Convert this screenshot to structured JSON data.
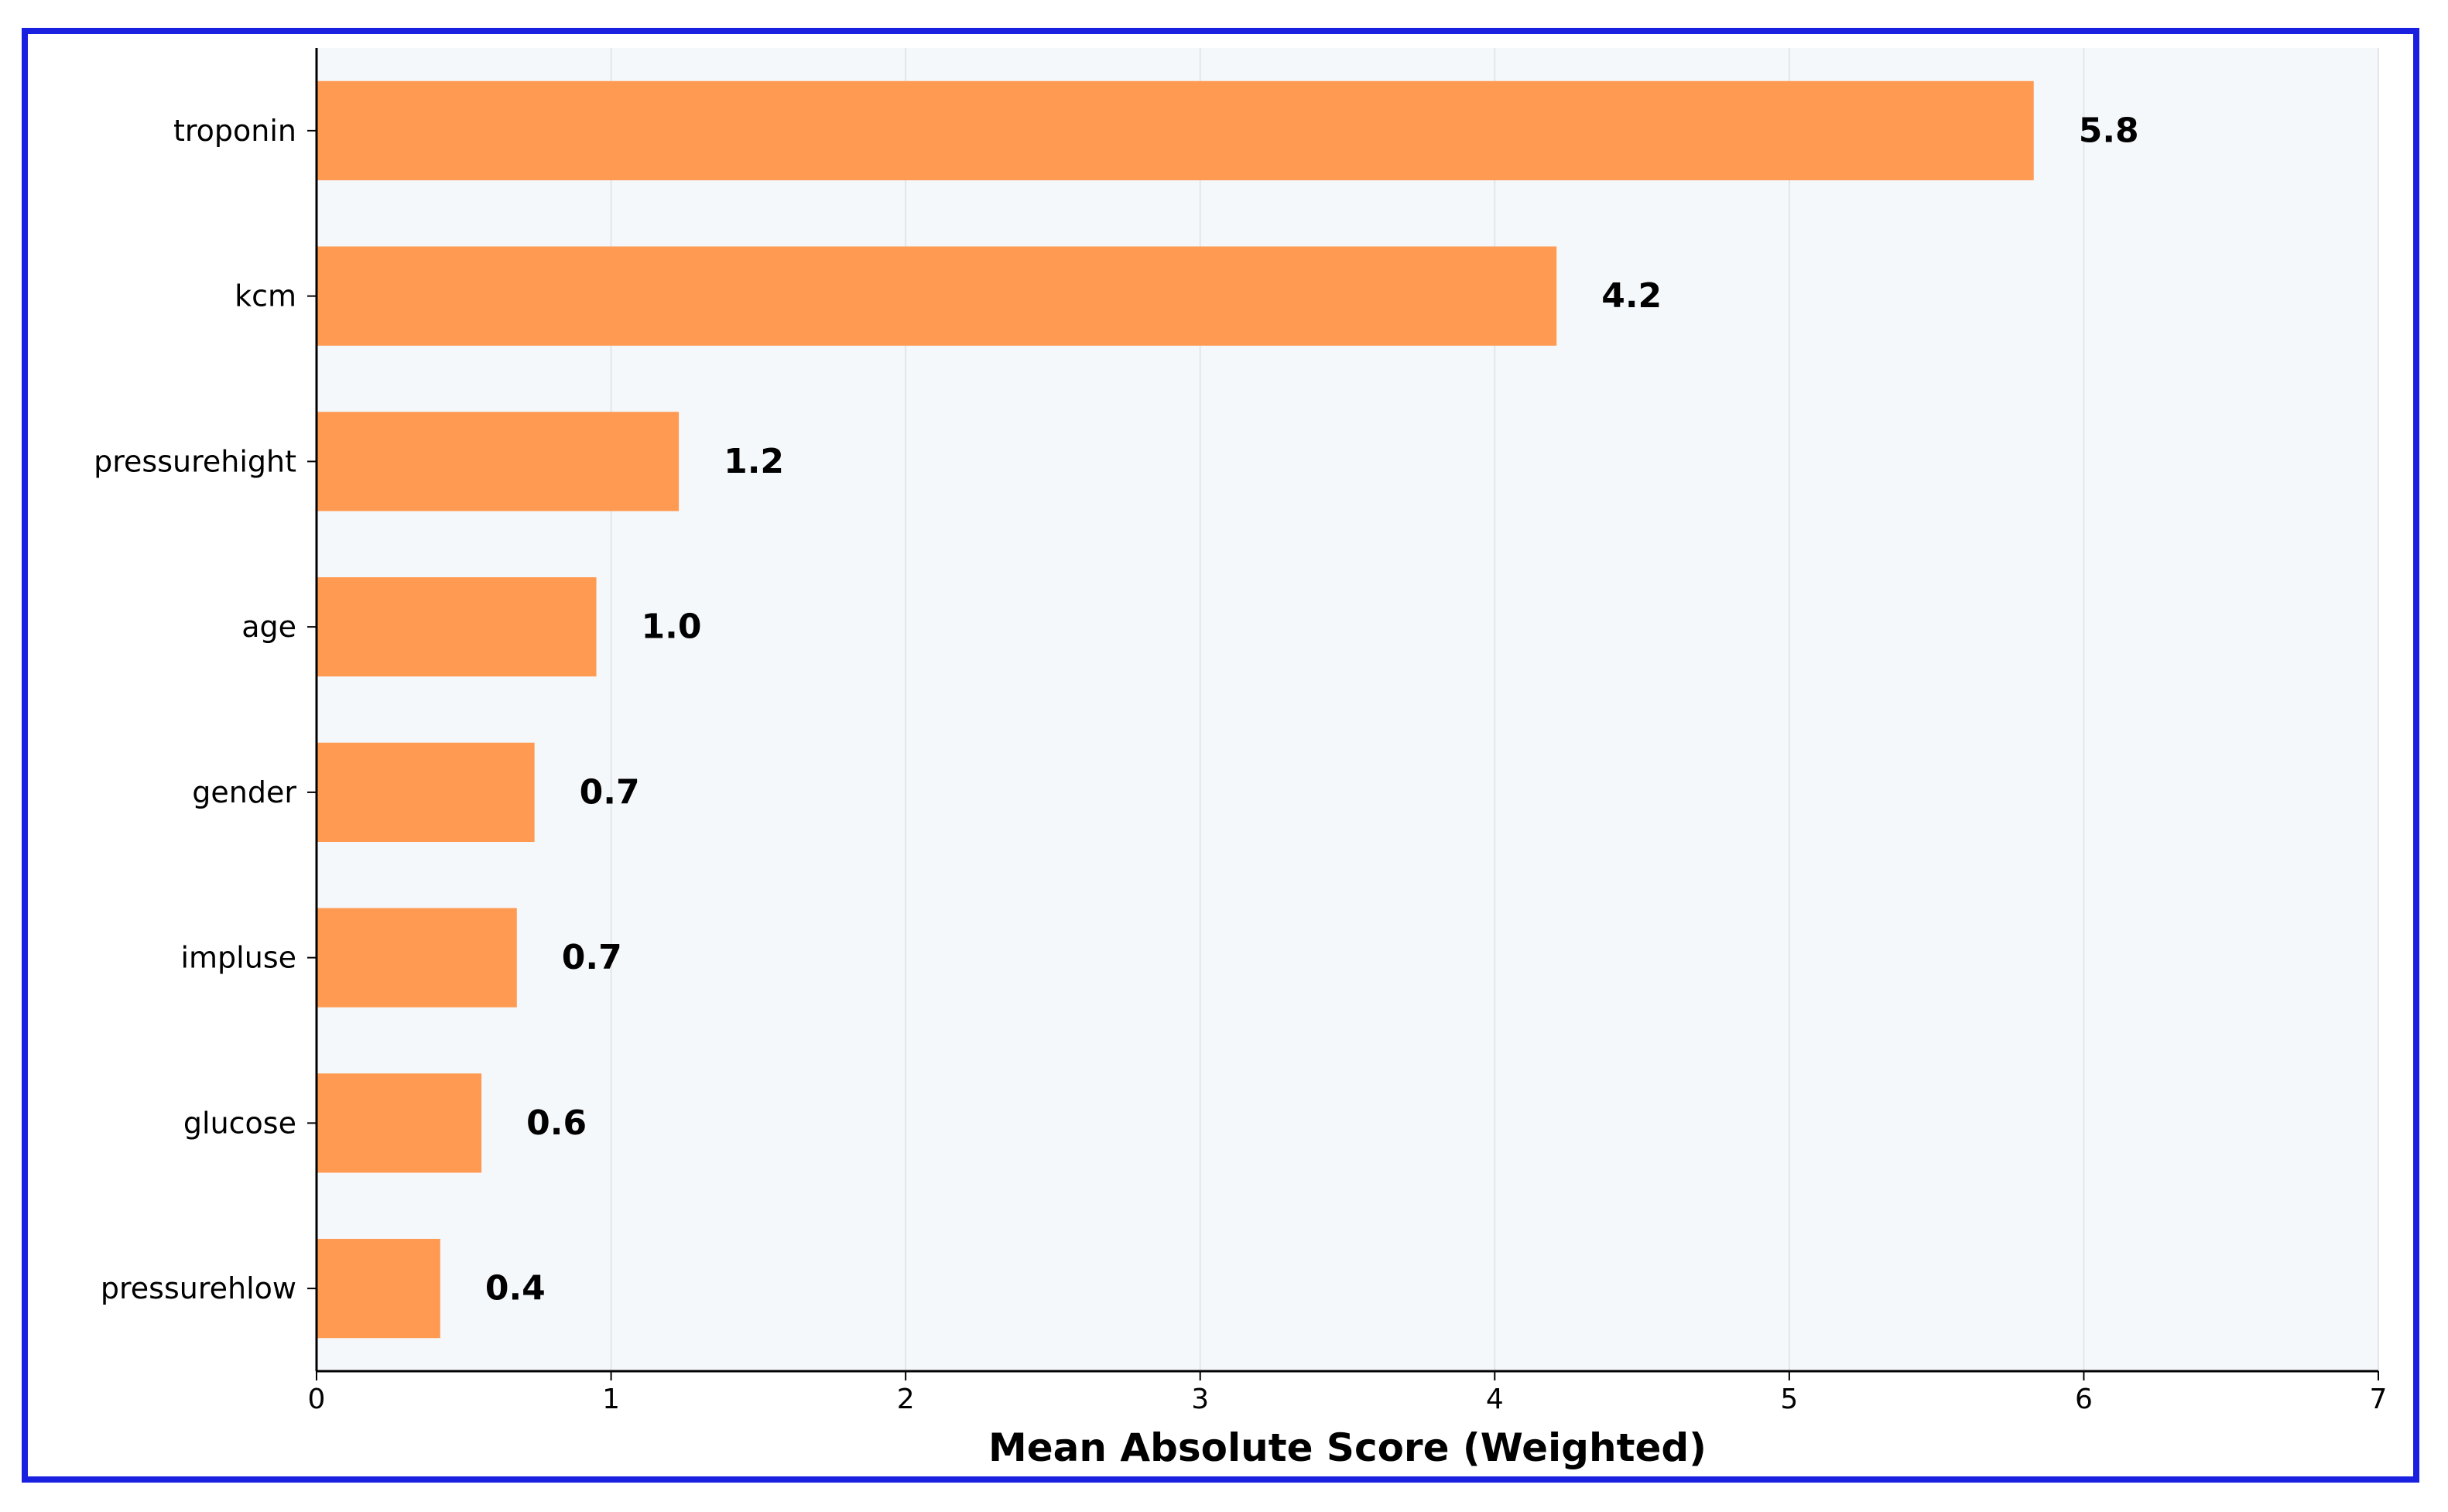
{
  "chart_data": {
    "type": "bar",
    "orientation": "horizontal",
    "categories": [
      "troponin",
      "kcm",
      "pressurehight",
      "age",
      "gender",
      "impluse",
      "glucose",
      "pressurehlow"
    ],
    "values": [
      5.83,
      4.21,
      1.23,
      0.95,
      0.74,
      0.68,
      0.56,
      0.42
    ],
    "value_labels": [
      "5.8",
      "4.2",
      "1.2",
      "1.0",
      "0.7",
      "0.7",
      "0.6",
      "0.4"
    ],
    "xlabel": "Mean Absolute Score (Weighted)",
    "ylabel": "",
    "xlim": [
      0,
      7
    ],
    "xticks": [
      "0",
      "1",
      "2",
      "3",
      "4",
      "5",
      "6",
      "7"
    ],
    "grid": "vertical",
    "bar_color": "#ff9a52",
    "plot_background": "#f5f8fb",
    "frame_color": "#1a20e0"
  }
}
